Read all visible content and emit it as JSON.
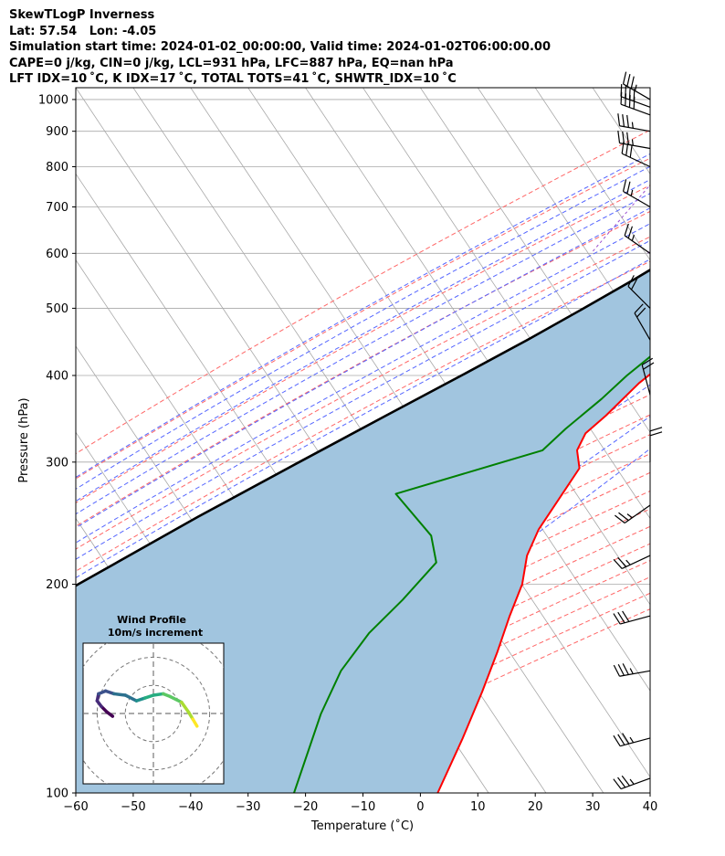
{
  "header": {
    "line1": "SkewTLogP Inverness",
    "line2": "Lat: 57.54   Lon: -4.05",
    "line3": "Simulation start time: 2024-01-02_00:00:00, Valid time: 2024-01-02T06:00:00.00",
    "line4": "CAPE=0 j/kg, CIN=0 j/kg, LCL=931 hPa, LFC=887 hPa, EQ=nan hPa",
    "line5": "LFT IDX=10 ˚C, K IDX=17 ˚C, TOTAL TOTS=41 ˚C, SHWTR_IDX=10 ˚C"
  },
  "colors": {
    "temperature": "#ff0000",
    "dewpoint": "#008000",
    "parcel": "#000000",
    "cape_fill": "#a1c5df",
    "dry_adiabat": "#ff6666",
    "moist_adiabat": "#5566ff",
    "mixing_ratio": "#9b4fcf",
    "isotherm": "#a8a8a8"
  },
  "chart_data": {
    "type": "line",
    "chart_kind": "skew-t log-p",
    "xlabel": "Temperature (˚C)",
    "ylabel": "Pressure (hPa)",
    "xlim": [
      -60,
      40
    ],
    "ylim": [
      1040,
      100
    ],
    "y_scale": "log",
    "x_ticks": [
      "−60",
      "−50",
      "−40",
      "−30",
      "−20",
      "−10",
      "0",
      "10",
      "20",
      "30",
      "40"
    ],
    "x_tick_values": [
      -60,
      -50,
      -40,
      -30,
      -20,
      -10,
      0,
      10,
      20,
      30,
      40
    ],
    "y_ticks": [
      "100",
      "200",
      "300",
      "400",
      "500",
      "600",
      "700",
      "800",
      "900",
      "1000"
    ],
    "y_tick_values": [
      100,
      200,
      300,
      400,
      500,
      600,
      700,
      800,
      900,
      1000
    ],
    "grid": true,
    "series": [
      {
        "key": "temperature",
        "points": [
          [
            1015,
            7.2
          ],
          [
            985,
            3.4
          ],
          [
            960,
            2.0
          ],
          [
            930,
            3.3
          ],
          [
            880,
            3.3
          ],
          [
            820,
            3.5
          ],
          [
            780,
            3.3
          ],
          [
            740,
            2.5
          ],
          [
            700,
            1.5
          ],
          [
            650,
            0.0
          ],
          [
            600,
            -1.3
          ],
          [
            550,
            -2.2
          ],
          [
            500,
            -3.1
          ],
          [
            470,
            -4.3
          ],
          [
            430,
            -6.5
          ],
          [
            390,
            -9.5
          ],
          [
            350,
            -11.5
          ],
          [
            330,
            -13.0
          ],
          [
            312,
            -12.5
          ],
          [
            294,
            -10.0
          ],
          [
            270,
            -10.0
          ],
          [
            240,
            -10.0
          ],
          [
            220,
            -9.0
          ],
          [
            200,
            -6.5
          ],
          [
            180,
            -5.0
          ],
          [
            160,
            -3.0
          ],
          [
            140,
            -1.0
          ],
          [
            120,
            1.0
          ],
          [
            100,
            3.0
          ]
        ]
      },
      {
        "key": "dewpoint",
        "points": [
          [
            985,
            3.4
          ],
          [
            960,
            3.5
          ],
          [
            930,
            2.0
          ],
          [
            880,
            0.5
          ],
          [
            840,
            0.0
          ],
          [
            800,
            0.7
          ],
          [
            750,
            1.0
          ],
          [
            700,
            0.3
          ],
          [
            650,
            -0.9
          ],
          [
            600,
            -2.3
          ],
          [
            550,
            -4.3
          ],
          [
            500,
            -6.7
          ],
          [
            450,
            -9.0
          ],
          [
            400,
            -12.5
          ],
          [
            370,
            -14.2
          ],
          [
            335,
            -17.0
          ],
          [
            312,
            -18.5
          ],
          [
            270,
            -39.0
          ],
          [
            235,
            -28.0
          ],
          [
            215,
            -24.0
          ],
          [
            190,
            -25.5
          ],
          [
            170,
            -27.5
          ],
          [
            150,
            -28.0
          ],
          [
            130,
            -26.5
          ],
          [
            100,
            -22.0
          ]
        ]
      },
      {
        "key": "parcel",
        "points": [
          [
            1015,
            7.2
          ],
          [
            985,
            4.8
          ],
          [
            960,
            3.5
          ],
          [
            940,
            2.4
          ],
          [
            931,
            1.8
          ],
          [
            900,
            0.5
          ],
          [
            850,
            -1.8
          ],
          [
            800,
            -4.3
          ],
          [
            750,
            -7.1
          ],
          [
            700,
            -10.2
          ],
          [
            650,
            -13.8
          ],
          [
            600,
            -17.8
          ],
          [
            550,
            -22.4
          ],
          [
            500,
            -27.8
          ],
          [
            450,
            -34.0
          ],
          [
            400,
            -41.3
          ],
          [
            350,
            -49.8
          ],
          [
            300,
            -59.5
          ],
          [
            250,
            -70.8
          ],
          [
            200,
            -83.8
          ],
          [
            150,
            -99.4
          ],
          [
            100,
            -118.7
          ]
        ]
      }
    ],
    "wind_barbs": [
      {
        "p": 1000,
        "dir": 300,
        "kt": 35
      },
      {
        "p": 975,
        "dir": 290,
        "kt": 40
      },
      {
        "p": 950,
        "dir": 290,
        "kt": 40
      },
      {
        "p": 900,
        "dir": 280,
        "kt": 35
      },
      {
        "p": 850,
        "dir": 280,
        "kt": 35
      },
      {
        "p": 800,
        "dir": 295,
        "kt": 30
      },
      {
        "p": 700,
        "dir": 300,
        "kt": 25
      },
      {
        "p": 600,
        "dir": 305,
        "kt": 25
      },
      {
        "p": 500,
        "dir": 315,
        "kt": 20
      },
      {
        "p": 450,
        "dir": 330,
        "kt": 20
      },
      {
        "p": 375,
        "dir": 345,
        "kt": 20
      },
      {
        "p": 300,
        "dir": 0,
        "kt": 20
      },
      {
        "p": 260,
        "dir": 235,
        "kt": 25
      },
      {
        "p": 220,
        "dir": 245,
        "kt": 25
      },
      {
        "p": 180,
        "dir": 255,
        "kt": 30
      },
      {
        "p": 150,
        "dir": 260,
        "kt": 35
      },
      {
        "p": 120,
        "dir": 255,
        "kt": 35
      },
      {
        "p": 105,
        "dir": 250,
        "kt": 35
      }
    ],
    "hodograph": {
      "title": "Wind Profile",
      "subtitle": "10m/s increment",
      "rings_ms": [
        10,
        20,
        30,
        40
      ],
      "xlim": [
        -25,
        25
      ],
      "ylim": [
        -25,
        25
      ],
      "trace": [
        [
          -14.5,
          -1.0
        ],
        [
          -16.5,
          0.5
        ],
        [
          -18.5,
          2.5
        ],
        [
          -20.0,
          4.5
        ],
        [
          -19.5,
          7.0
        ],
        [
          -17.0,
          8.0
        ],
        [
          -14.0,
          7.0
        ],
        [
          -10.0,
          6.5
        ],
        [
          -6.0,
          4.5
        ],
        [
          -3.0,
          5.5
        ],
        [
          0,
          6.5
        ],
        [
          3.5,
          7.0
        ],
        [
          6.0,
          6.0
        ],
        [
          10.0,
          4.0
        ],
        [
          12.5,
          0.5
        ],
        [
          14.0,
          -2.0
        ],
        [
          15.5,
          -4.5
        ]
      ]
    }
  }
}
